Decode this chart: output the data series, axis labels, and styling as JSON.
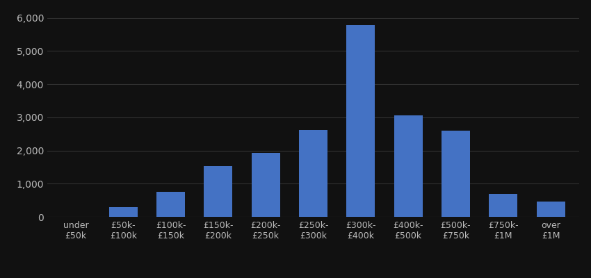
{
  "categories": [
    "under\n£50k",
    "£50k-\n£100k",
    "£100k-\n£150k",
    "£150k-\n£200k",
    "£200k-\n£250k",
    "£250k-\n£300k",
    "£300k-\n£400k",
    "£400k-\n£500k",
    "£500k-\n£750k",
    "£750k-\n£1M",
    "over\n£1M"
  ],
  "values": [
    0,
    300,
    750,
    1520,
    1930,
    2620,
    5780,
    3060,
    2590,
    690,
    470
  ],
  "bar_color": "#4472C4",
  "background_color": "#111111",
  "text_color": "#bbbbbb",
  "grid_color": "#333333",
  "ylim": [
    0,
    6200
  ],
  "yticks": [
    0,
    1000,
    2000,
    3000,
    4000,
    5000,
    6000
  ],
  "tick_fontsize": 10,
  "xlabel_fontsize": 9,
  "bar_width": 0.6
}
